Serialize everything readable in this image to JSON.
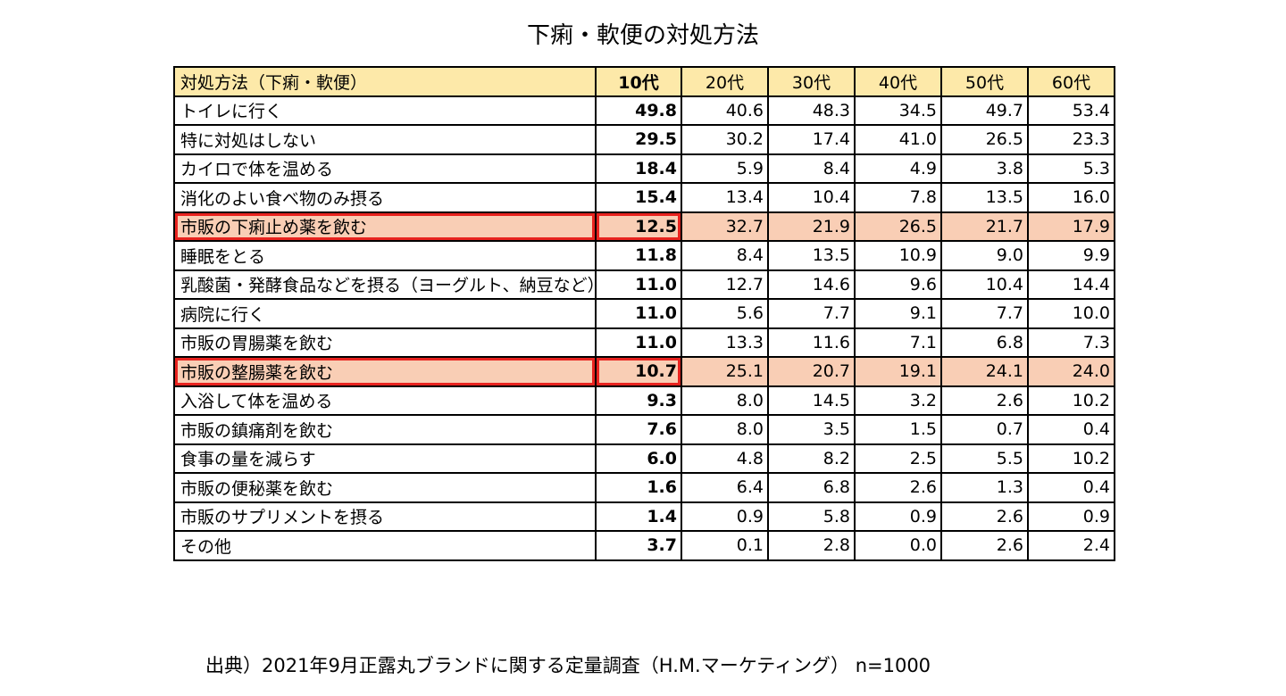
{
  "title": "下痢・軟便の対処方法",
  "header": {
    "label": "対処方法（下痢・軟便）",
    "columns": [
      "10代",
      "20代",
      "30代",
      "40代",
      "50代",
      "60代"
    ]
  },
  "rows": [
    {
      "label": "トイレに行く",
      "values": [
        "49.8",
        "40.6",
        "48.3",
        "34.5",
        "49.7",
        "53.4"
      ],
      "highlight": false
    },
    {
      "label": "特に対処はしない",
      "values": [
        "29.5",
        "30.2",
        "17.4",
        "41.0",
        "26.5",
        "23.3"
      ],
      "highlight": false
    },
    {
      "label": "カイロで体を温める",
      "values": [
        "18.4",
        "5.9",
        "8.4",
        "4.9",
        "3.8",
        "5.3"
      ],
      "highlight": false
    },
    {
      "label": "消化のよい食べ物のみ摂る",
      "values": [
        "15.4",
        "13.4",
        "10.4",
        "7.8",
        "13.5",
        "16.0"
      ],
      "highlight": false
    },
    {
      "label": "市販の下痢止め薬を飲む",
      "values": [
        "12.5",
        "32.7",
        "21.9",
        "26.5",
        "21.7",
        "17.9"
      ],
      "highlight": true
    },
    {
      "label": "睡眠をとる",
      "values": [
        "11.8",
        "8.4",
        "13.5",
        "10.9",
        "9.0",
        "9.9"
      ],
      "highlight": false
    },
    {
      "label": "乳酸菌・発酵食品などを摂る（ヨーグルト、納豆など）",
      "values": [
        "11.0",
        "12.7",
        "14.6",
        "9.6",
        "10.4",
        "14.4"
      ],
      "highlight": false
    },
    {
      "label": "病院に行く",
      "values": [
        "11.0",
        "5.6",
        "7.7",
        "9.1",
        "7.7",
        "10.0"
      ],
      "highlight": false
    },
    {
      "label": "市販の胃腸薬を飲む",
      "values": [
        "11.0",
        "13.3",
        "11.6",
        "7.1",
        "6.8",
        "7.3"
      ],
      "highlight": false
    },
    {
      "label": "市販の整腸薬を飲む",
      "values": [
        "10.7",
        "25.1",
        "20.7",
        "19.1",
        "24.1",
        "24.0"
      ],
      "highlight": true
    },
    {
      "label": "入浴して体を温める",
      "values": [
        "9.3",
        "8.0",
        "14.5",
        "3.2",
        "2.6",
        "10.2"
      ],
      "highlight": false
    },
    {
      "label": "市販の鎮痛剤を飲む",
      "values": [
        "7.6",
        "8.0",
        "3.5",
        "1.5",
        "0.7",
        "0.4"
      ],
      "highlight": false
    },
    {
      "label": "食事の量を減らす",
      "values": [
        "6.0",
        "4.8",
        "8.2",
        "2.5",
        "5.5",
        "10.2"
      ],
      "highlight": false
    },
    {
      "label": "市販の便秘薬を飲む",
      "values": [
        "1.6",
        "6.4",
        "6.8",
        "2.6",
        "1.3",
        "0.4"
      ],
      "highlight": false
    },
    {
      "label": "市販のサプリメントを摂る",
      "values": [
        "1.4",
        "0.9",
        "5.8",
        "0.9",
        "2.6",
        "0.9"
      ],
      "highlight": false
    },
    {
      "label": "その他",
      "values": [
        "3.7",
        "0.1",
        "2.8",
        "0.0",
        "2.6",
        "2.4"
      ],
      "highlight": false
    }
  ],
  "source": "出典）2021年9月正露丸ブランドに関する定量調査（H.M.マーケティング） n=1000",
  "colors": {
    "header_fill": "#fde9a9",
    "highlight_fill": "#f9ceb5",
    "highlight_border": "#e8231f"
  }
}
